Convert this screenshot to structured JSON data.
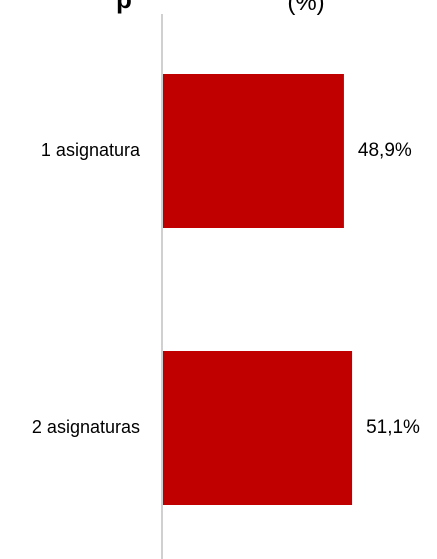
{
  "chart_data": {
    "type": "bar",
    "orientation": "horizontal",
    "title_fragments": [
      "p",
      "(%)"
    ],
    "categories": [
      "1 asignatura",
      "2 asignaturas"
    ],
    "values": [
      48.9,
      51.1
    ],
    "data_labels": [
      "48,9%",
      "51,1%"
    ],
    "unit": "%",
    "xlim": [
      0,
      100
    ],
    "grid": false,
    "legend": "none",
    "colors": {
      "bar": "#C00000",
      "axis": "#D0D0D0",
      "text": "#000000"
    }
  }
}
